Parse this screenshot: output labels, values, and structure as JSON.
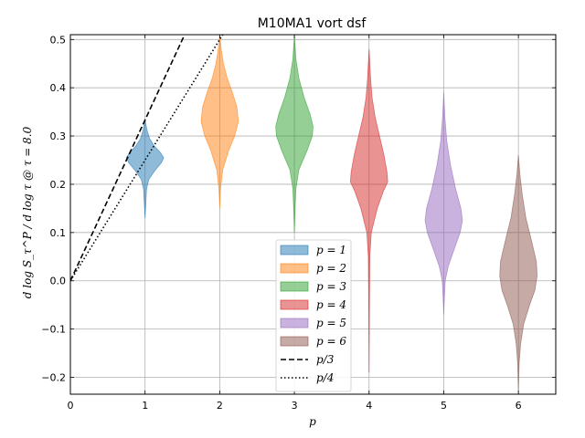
{
  "chart_data": {
    "type": "violin",
    "title": "M10MA1 vort dsf",
    "xlabel": "p",
    "ylabel": "d log S_τ^P / d log τ @ τ = 8.0",
    "xlim": [
      0,
      6.5
    ],
    "ylim": [
      -0.235,
      0.51
    ],
    "xticks": [
      "0",
      "1",
      "2",
      "3",
      "4",
      "5",
      "6"
    ],
    "yticks": [
      "−0.2",
      "−0.1",
      "0.0",
      "0.1",
      "0.2",
      "0.3",
      "0.4",
      "0.5"
    ],
    "ytick_values": [
      -0.2,
      -0.1,
      0.0,
      0.1,
      0.2,
      0.3,
      0.4,
      0.5
    ],
    "grid": true,
    "legend_position": "lower-center",
    "violins": [
      {
        "name": "p = 1",
        "position": 1,
        "color": "#1f77b4",
        "profile": [
          [
            0.13,
            0
          ],
          [
            0.16,
            0.01
          ],
          [
            0.19,
            0.02
          ],
          [
            0.21,
            0.05
          ],
          [
            0.23,
            0.14
          ],
          [
            0.245,
            0.22
          ],
          [
            0.255,
            0.25
          ],
          [
            0.265,
            0.21
          ],
          [
            0.28,
            0.12
          ],
          [
            0.295,
            0.06
          ],
          [
            0.31,
            0.03
          ],
          [
            0.325,
            0.01
          ],
          [
            0.335,
            0
          ]
        ]
      },
      {
        "name": "p = 2",
        "position": 2,
        "color": "#ff7f0e",
        "profile": [
          [
            0.15,
            0
          ],
          [
            0.19,
            0.01
          ],
          [
            0.23,
            0.04
          ],
          [
            0.27,
            0.12
          ],
          [
            0.3,
            0.2
          ],
          [
            0.33,
            0.25
          ],
          [
            0.36,
            0.23
          ],
          [
            0.39,
            0.17
          ],
          [
            0.42,
            0.1
          ],
          [
            0.45,
            0.05
          ],
          [
            0.48,
            0.02
          ],
          [
            0.51,
            0
          ]
        ]
      },
      {
        "name": "p = 3",
        "position": 3,
        "color": "#2ca02c",
        "profile": [
          [
            0.1,
            0
          ],
          [
            0.15,
            0.01
          ],
          [
            0.19,
            0.02
          ],
          [
            0.23,
            0.06
          ],
          [
            0.27,
            0.17
          ],
          [
            0.3,
            0.24
          ],
          [
            0.32,
            0.25
          ],
          [
            0.345,
            0.21
          ],
          [
            0.38,
            0.13
          ],
          [
            0.42,
            0.06
          ],
          [
            0.46,
            0.02
          ],
          [
            0.51,
            0
          ]
        ]
      },
      {
        "name": "p = 4",
        "position": 4,
        "color": "#d62728",
        "profile": [
          [
            -0.19,
            0
          ],
          [
            -0.05,
            0.005
          ],
          [
            0.05,
            0.01
          ],
          [
            0.1,
            0.03
          ],
          [
            0.15,
            0.11
          ],
          [
            0.185,
            0.19
          ],
          [
            0.205,
            0.25
          ],
          [
            0.225,
            0.24
          ],
          [
            0.26,
            0.2
          ],
          [
            0.3,
            0.14
          ],
          [
            0.34,
            0.08
          ],
          [
            0.38,
            0.04
          ],
          [
            0.42,
            0.02
          ],
          [
            0.48,
            0
          ]
        ]
      },
      {
        "name": "p = 5",
        "position": 5,
        "color": "#9467bd",
        "profile": [
          [
            -0.07,
            0
          ],
          [
            -0.03,
            0.01
          ],
          [
            0.0,
            0.02
          ],
          [
            0.03,
            0.06
          ],
          [
            0.07,
            0.15
          ],
          [
            0.1,
            0.22
          ],
          [
            0.125,
            0.25
          ],
          [
            0.15,
            0.23
          ],
          [
            0.19,
            0.16
          ],
          [
            0.24,
            0.09
          ],
          [
            0.29,
            0.04
          ],
          [
            0.34,
            0.015
          ],
          [
            0.39,
            0
          ]
        ]
      },
      {
        "name": "p = 6",
        "position": 6,
        "color": "#8c564b",
        "profile": [
          [
            -0.23,
            0
          ],
          [
            -0.17,
            0.01
          ],
          [
            -0.13,
            0.03
          ],
          [
            -0.09,
            0.07
          ],
          [
            -0.05,
            0.15
          ],
          [
            -0.02,
            0.22
          ],
          [
            0.01,
            0.25
          ],
          [
            0.04,
            0.24
          ],
          [
            0.08,
            0.18
          ],
          [
            0.13,
            0.1
          ],
          [
            0.18,
            0.05
          ],
          [
            0.22,
            0.02
          ],
          [
            0.26,
            0
          ]
        ]
      }
    ],
    "lines": [
      {
        "name": "p/3",
        "style": "dashed",
        "slope": 0.3333333
      },
      {
        "name": "p/4",
        "style": "dotted",
        "slope": 0.25
      }
    ]
  }
}
